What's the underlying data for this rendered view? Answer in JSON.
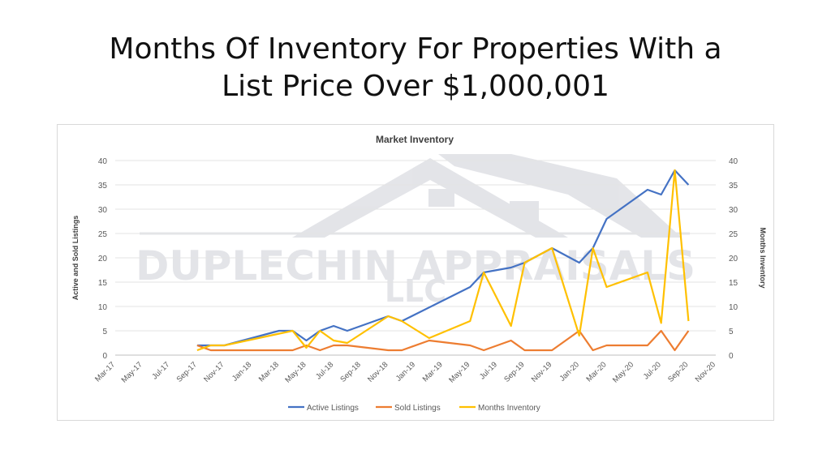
{
  "slide": {
    "title_line1": "Months Of Inventory For Properties With a",
    "title_line2": "List Price Over $1,000,001"
  },
  "watermark": {
    "line1": "DUPLECHIN APPRAISALS",
    "line2": "LLC"
  },
  "chart_data": {
    "type": "line",
    "title": "Market Inventory",
    "ylabel_left": "Active and Sold Listings",
    "ylabel_right": "Months Inventory",
    "x_ticks": [
      "Mar-17",
      "May-17",
      "Jul-17",
      "Sep-17",
      "Nov-17",
      "Jan-18",
      "Mar-18",
      "May-18",
      "Jul-18",
      "Sep-18",
      "Nov-18",
      "Jan-19",
      "Mar-19",
      "May-19",
      "Jul-19",
      "Sep-19",
      "Nov-19",
      "Jan-20",
      "Mar-20",
      "May-20",
      "Jul-20",
      "Sep-20",
      "Nov-20"
    ],
    "y_ticks": [
      "0",
      "5",
      "10",
      "15",
      "20",
      "25",
      "30",
      "35",
      "40"
    ],
    "ylim": [
      0,
      40
    ],
    "y2lim": [
      0,
      40
    ],
    "grid": true,
    "legend_position": "bottom",
    "series": [
      {
        "name": "Active Listings",
        "color": "#4472C4",
        "axis": "left",
        "points": [
          [
            "Sep-17",
            2
          ],
          [
            "Oct-17",
            2
          ],
          [
            "Nov-17",
            2
          ],
          [
            "Mar-18",
            5
          ],
          [
            "Apr-18",
            5
          ],
          [
            "May-18",
            3
          ],
          [
            "Jun-18",
            5
          ],
          [
            "Jul-18",
            6
          ],
          [
            "Aug-18",
            5
          ],
          [
            "Nov-18",
            8
          ],
          [
            "Dec-18",
            7
          ],
          [
            "May-19",
            14
          ],
          [
            "Jun-19",
            17
          ],
          [
            "Aug-19",
            18
          ],
          [
            "Sep-19",
            19
          ],
          [
            "Nov-19",
            22
          ],
          [
            "Jan-20",
            19
          ],
          [
            "Feb-20",
            22
          ],
          [
            "Mar-20",
            28
          ],
          [
            "Jun-20",
            34
          ],
          [
            "Jul-20",
            33
          ],
          [
            "Aug-20",
            38
          ],
          [
            "Sep-20",
            35
          ]
        ]
      },
      {
        "name": "Sold Listings",
        "color": "#ED7D31",
        "axis": "left",
        "points": [
          [
            "Sep-17",
            2
          ],
          [
            "Oct-17",
            1
          ],
          [
            "Nov-17",
            1
          ],
          [
            "Apr-18",
            1
          ],
          [
            "May-18",
            2
          ],
          [
            "Jun-18",
            1
          ],
          [
            "Jul-18",
            2
          ],
          [
            "Aug-18",
            2
          ],
          [
            "Nov-18",
            1
          ],
          [
            "Dec-18",
            1
          ],
          [
            "Feb-19",
            3
          ],
          [
            "May-19",
            2
          ],
          [
            "Jun-19",
            1
          ],
          [
            "Aug-19",
            3
          ],
          [
            "Sep-19",
            1
          ],
          [
            "Nov-19",
            1
          ],
          [
            "Jan-20",
            5
          ],
          [
            "Feb-20",
            1
          ],
          [
            "Mar-20",
            2
          ],
          [
            "Jun-20",
            2
          ],
          [
            "Jul-20",
            5
          ],
          [
            "Aug-20",
            1
          ],
          [
            "Sep-20",
            5
          ]
        ]
      },
      {
        "name": "Months Inventory",
        "color": "#FFC000",
        "axis": "right",
        "points": [
          [
            "Sep-17",
            1
          ],
          [
            "Oct-17",
            2
          ],
          [
            "Nov-17",
            2
          ],
          [
            "Apr-18",
            5
          ],
          [
            "May-18",
            1.5
          ],
          [
            "Jun-18",
            5
          ],
          [
            "Jul-18",
            3
          ],
          [
            "Aug-18",
            2.5
          ],
          [
            "Nov-18",
            8
          ],
          [
            "Dec-18",
            7
          ],
          [
            "Feb-19",
            3.5
          ],
          [
            "May-19",
            7
          ],
          [
            "Jun-19",
            17
          ],
          [
            "Aug-19",
            6
          ],
          [
            "Sep-19",
            19
          ],
          [
            "Nov-19",
            22
          ],
          [
            "Jan-20",
            4
          ],
          [
            "Feb-20",
            22
          ],
          [
            "Mar-20",
            14
          ],
          [
            "Jun-20",
            17
          ],
          [
            "Jul-20",
            6.6
          ],
          [
            "Aug-20",
            38
          ],
          [
            "Sep-20",
            7
          ]
        ]
      }
    ]
  }
}
